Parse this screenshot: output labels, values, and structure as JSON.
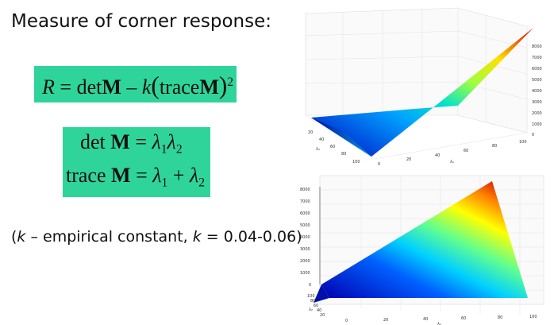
{
  "heading": "Measure of corner response:",
  "eq_r": {
    "lhs": "R",
    "eq": "=",
    "det": "det",
    "M": "M",
    "minus": "–",
    "k": "k",
    "lp": "(",
    "trace": "trace",
    "rp": ")",
    "exp": "2"
  },
  "eq_det": {
    "line1": {
      "det": "det",
      "M": "M",
      "eq": "=",
      "l1": "λ",
      "s1": "1",
      "l2": "λ",
      "s2": "2"
    },
    "line2": {
      "trace": "trace",
      "M": "M",
      "eq": "=",
      "l1": "λ",
      "s1": "1",
      "plus": "+",
      "l2": "λ",
      "s2": "2"
    }
  },
  "note": {
    "open": "(",
    "k1": "k",
    "mid": " – empirical constant, ",
    "k2": "k",
    "val": " = 0.04-0.06)"
  },
  "plot_top": {
    "zticks": [
      "0",
      "1000",
      "2000",
      "3000",
      "4000",
      "5000",
      "6000",
      "7000",
      "8000"
    ],
    "xticks": [
      "0",
      "20",
      "40",
      "60",
      "80",
      "100"
    ],
    "yticks": [
      "100",
      "80",
      "60",
      "40",
      "20"
    ],
    "xlabel": "λ₁",
    "ylabel": "λ₂"
  },
  "plot_bottom": {
    "zticks": [
      "0",
      "1000",
      "2000",
      "3000",
      "4000",
      "5000",
      "6000",
      "7000",
      "8000"
    ],
    "xticks": [
      "0",
      "20",
      "40",
      "60",
      "80",
      "100"
    ],
    "yticks": [
      "100",
      "80",
      "60",
      "40",
      "20"
    ],
    "xlabel": "λ₁",
    "ylabel": "λ₂"
  },
  "colors": {
    "eq_box": "#2fd49b",
    "surface_low": "#0000c8",
    "surface_high": "#e00000"
  }
}
